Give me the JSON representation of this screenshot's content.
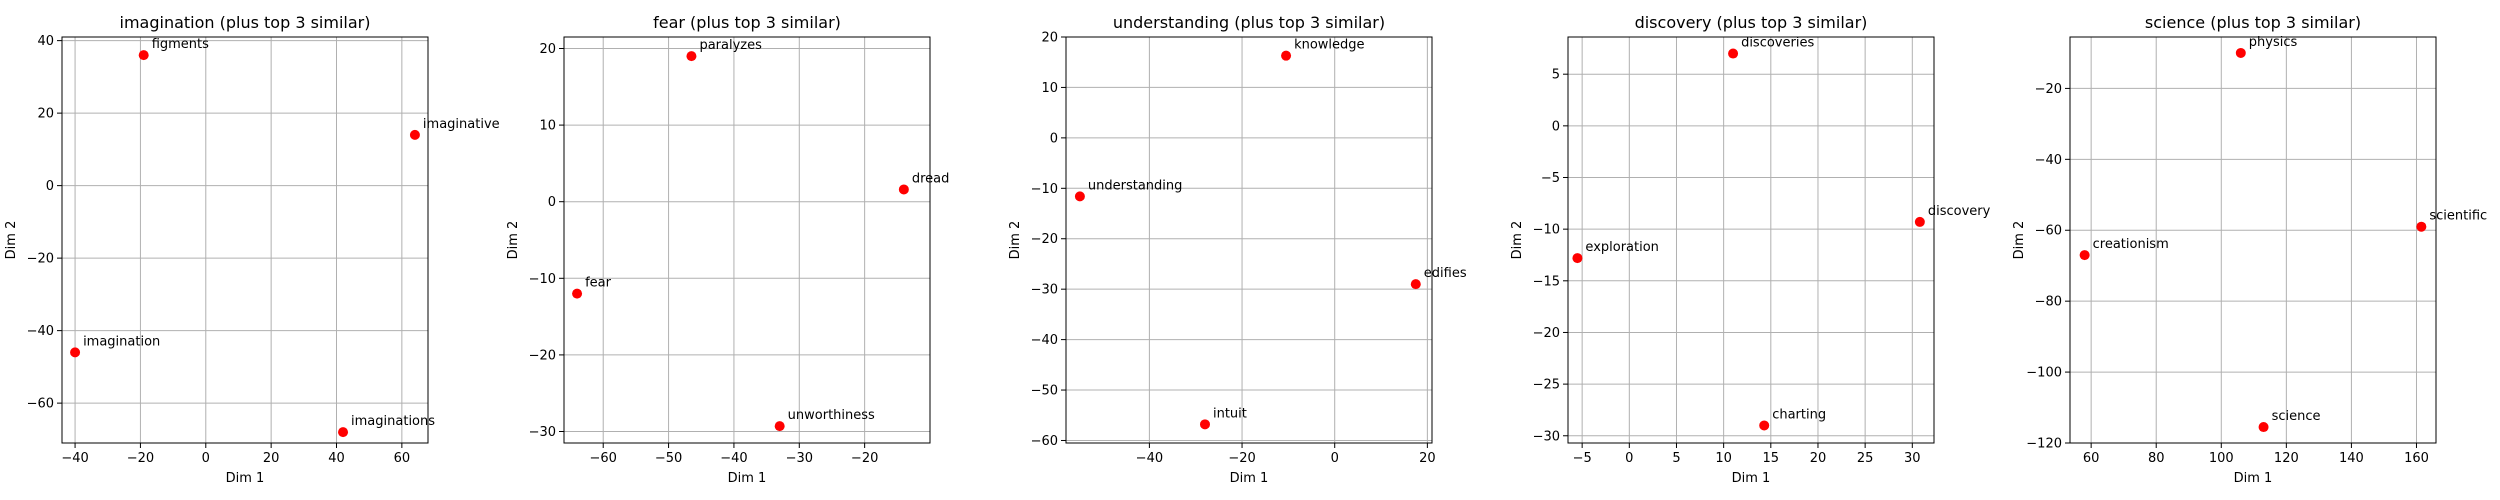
{
  "chart_data": [
    {
      "type": "scatter",
      "title": "imagination (plus top 3 similar)",
      "xlabel": "Dim 1",
      "ylabel": "Dim 2",
      "xlim": [
        -44,
        68
      ],
      "ylim": [
        -71,
        41
      ],
      "xticks": [
        -40,
        -20,
        0,
        20,
        40,
        60
      ],
      "yticks": [
        -60,
        -40,
        -20,
        0,
        20,
        40
      ],
      "grid": true,
      "marker_color": "#ff0000",
      "points": [
        {
          "label": "figments",
          "x": -19,
          "y": 36
        },
        {
          "label": "imaginative",
          "x": 64,
          "y": 14
        },
        {
          "label": "imagination",
          "x": -40,
          "y": -46
        },
        {
          "label": "imaginations",
          "x": 42,
          "y": -68
        }
      ]
    },
    {
      "type": "scatter",
      "title": "fear (plus top 3 similar)",
      "xlabel": "Dim 1",
      "ylabel": "Dim 2",
      "xlim": [
        -66,
        -10
      ],
      "ylim": [
        -31.5,
        21.5
      ],
      "xticks": [
        -60,
        -50,
        -40,
        -30,
        -20
      ],
      "yticks": [
        -30,
        -20,
        -10,
        0,
        10,
        20
      ],
      "grid": true,
      "marker_color": "#ff0000",
      "points": [
        {
          "label": "paralyzes",
          "x": -46.5,
          "y": 19
        },
        {
          "label": "dread",
          "x": -14,
          "y": 1.6
        },
        {
          "label": "fear",
          "x": -64,
          "y": -12
        },
        {
          "label": "unworthiness",
          "x": -33,
          "y": -29.3
        }
      ]
    },
    {
      "type": "scatter",
      "title": "understanding (plus top 3 similar)",
      "xlabel": "Dim 1",
      "ylabel": "Dim 2",
      "xlim": [
        -58,
        21
      ],
      "ylim": [
        -60.5,
        20
      ],
      "xticks": [
        -40,
        -20,
        0,
        20
      ],
      "yticks": [
        -60,
        -50,
        -40,
        -30,
        -20,
        -10,
        0,
        10,
        20
      ],
      "grid": true,
      "marker_color": "#ff0000",
      "points": [
        {
          "label": "knowledge",
          "x": -10.5,
          "y": 16.3
        },
        {
          "label": "understanding",
          "x": -55,
          "y": -11.6
        },
        {
          "label": "edifies",
          "x": 17.5,
          "y": -29
        },
        {
          "label": "intuit",
          "x": -28,
          "y": -56.8
        }
      ]
    },
    {
      "type": "scatter",
      "title": "discovery (plus top 3 similar)",
      "xlabel": "Dim 1",
      "ylabel": "Dim 2",
      "xlim": [
        -6.5,
        32.3
      ],
      "ylim": [
        -30.7,
        8.6
      ],
      "xticks": [
        -5,
        0,
        5,
        10,
        15,
        20,
        25,
        30
      ],
      "yticks": [
        -30,
        -25,
        -20,
        -15,
        -10,
        -5,
        0,
        5
      ],
      "grid": true,
      "marker_color": "#ff0000",
      "points": [
        {
          "label": "discoveries",
          "x": 11,
          "y": 7
        },
        {
          "label": "exploration",
          "x": -5.5,
          "y": -12.8
        },
        {
          "label": "discovery",
          "x": 30.8,
          "y": -9.3
        },
        {
          "label": "charting",
          "x": 14.3,
          "y": -29
        }
      ]
    },
    {
      "type": "scatter",
      "title": "science (plus top 3 similar)",
      "xlabel": "Dim 1",
      "ylabel": "Dim 2",
      "xlim": [
        53.5,
        166
      ],
      "ylim": [
        -120,
        -5.5
      ],
      "xticks": [
        60,
        80,
        100,
        120,
        140,
        160
      ],
      "yticks": [
        -120,
        -100,
        -80,
        -60,
        -40,
        -20
      ],
      "grid": true,
      "marker_color": "#ff0000",
      "points": [
        {
          "label": "physics",
          "x": 106,
          "y": -10
        },
        {
          "label": "creationism",
          "x": 58,
          "y": -67
        },
        {
          "label": "scientific",
          "x": 161.5,
          "y": -59
        },
        {
          "label": "science",
          "x": 113,
          "y": -115.5
        }
      ]
    }
  ]
}
